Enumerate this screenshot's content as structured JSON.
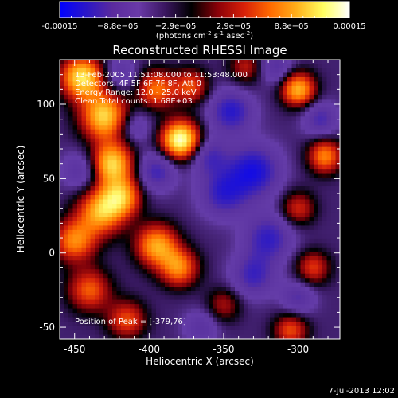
{
  "colorbar": {
    "tick_labels": [
      "-0.00015",
      "−8.8e−05",
      "−2.9e−05",
      "2.9e−05",
      "8.8e−05",
      "0.00015"
    ],
    "unit_main": "(photons cm",
    "unit_exp1": "-2",
    "unit_mid": " s",
    "unit_exp2": "-1",
    "unit_end": " asec",
    "unit_exp3": "-2",
    "unit_close": ")",
    "colors": [
      "#0000ff",
      "#2a16c8",
      "#5a2a9e",
      "#6a3aa8",
      "#3a1660",
      "#000000",
      "#8a0008",
      "#d82008",
      "#ff6a00",
      "#ffb01a",
      "#ffff60",
      "#ffffff"
    ]
  },
  "chart_data": {
    "type": "heatmap",
    "title": "Reconstructed RHESSI Image",
    "xlabel": "Heliocentric X (arcsec)",
    "ylabel": "Heliocentric Y (arcsec)",
    "xlim": [
      -460,
      -272
    ],
    "ylim": [
      -58,
      130
    ],
    "xticks": [
      -450,
      -400,
      -350,
      -300
    ],
    "yticks": [
      -50,
      0,
      50,
      100
    ],
    "annotations": [
      "13-Feb-2005 11:51:08.000 to 11:53:48.000",
      "Detectors: 4F 5F 6F 7F 8F, Att 0",
      "Energy Range: 12.0 - 25.0 keV",
      "Clean    Total counts: 1.68E+03"
    ],
    "peak_label": "Position of Peak = [-379,76]",
    "peak": [
      -379,
      76
    ],
    "blobs": [
      {
        "x": -445,
        "y": 118,
        "amp": 1.0,
        "s": 10
      },
      {
        "x": -430,
        "y": 92,
        "amp": 0.95,
        "s": 11
      },
      {
        "x": -425,
        "y": 60,
        "amp": 0.95,
        "s": 10
      },
      {
        "x": -432,
        "y": 28,
        "amp": 0.85,
        "s": 11
      },
      {
        "x": -418,
        "y": 38,
        "amp": 0.7,
        "s": 9
      },
      {
        "x": -450,
        "y": 8,
        "amp": 0.7,
        "s": 10
      },
      {
        "x": -395,
        "y": 5,
        "amp": 0.8,
        "s": 10
      },
      {
        "x": -380,
        "y": -10,
        "amp": 0.7,
        "s": 9
      },
      {
        "x": -379,
        "y": 76,
        "amp": 1.2,
        "s": 9
      },
      {
        "x": -395,
        "y": 110,
        "amp": 0.65,
        "s": 9
      },
      {
        "x": -372,
        "y": 112,
        "amp": 0.55,
        "s": 8
      },
      {
        "x": -440,
        "y": -25,
        "amp": 0.6,
        "s": 10
      },
      {
        "x": -415,
        "y": -45,
        "amp": 0.55,
        "s": 9
      },
      {
        "x": -300,
        "y": 110,
        "amp": 0.85,
        "s": 8
      },
      {
        "x": -282,
        "y": 65,
        "amp": 0.7,
        "s": 8
      },
      {
        "x": -300,
        "y": 30,
        "amp": 0.45,
        "s": 8
      },
      {
        "x": -290,
        "y": -10,
        "amp": 0.5,
        "s": 8
      },
      {
        "x": -305,
        "y": -52,
        "amp": 0.55,
        "s": 8
      },
      {
        "x": -335,
        "y": 125,
        "amp": 0.4,
        "s": 8
      },
      {
        "x": -350,
        "y": -35,
        "amp": 0.35,
        "s": 8
      },
      {
        "x": -345,
        "y": 95,
        "amp": -0.55,
        "s": 10
      },
      {
        "x": -330,
        "y": 55,
        "amp": -0.65,
        "s": 12
      },
      {
        "x": -350,
        "y": 40,
        "amp": -0.5,
        "s": 11
      },
      {
        "x": -320,
        "y": 10,
        "amp": -0.5,
        "s": 11
      },
      {
        "x": -360,
        "y": 65,
        "amp": -0.4,
        "s": 9
      },
      {
        "x": -395,
        "y": 55,
        "amp": -0.45,
        "s": 9
      },
      {
        "x": -330,
        "y": -15,
        "amp": -0.45,
        "s": 10
      },
      {
        "x": -445,
        "y": 55,
        "amp": -0.35,
        "s": 9
      },
      {
        "x": -420,
        "y": 120,
        "amp": -0.3,
        "s": 8
      },
      {
        "x": -285,
        "y": 90,
        "amp": -0.4,
        "s": 8
      },
      {
        "x": -315,
        "y": 125,
        "amp": -0.35,
        "s": 8
      },
      {
        "x": -300,
        "y": -30,
        "amp": -0.35,
        "s": 8
      },
      {
        "x": -365,
        "y": -50,
        "amp": -0.3,
        "s": 8
      },
      {
        "x": -410,
        "y": 85,
        "amp": -0.3,
        "s": 8
      }
    ]
  },
  "footer": {
    "timestamp": "7-Jul-2013 12:02"
  }
}
